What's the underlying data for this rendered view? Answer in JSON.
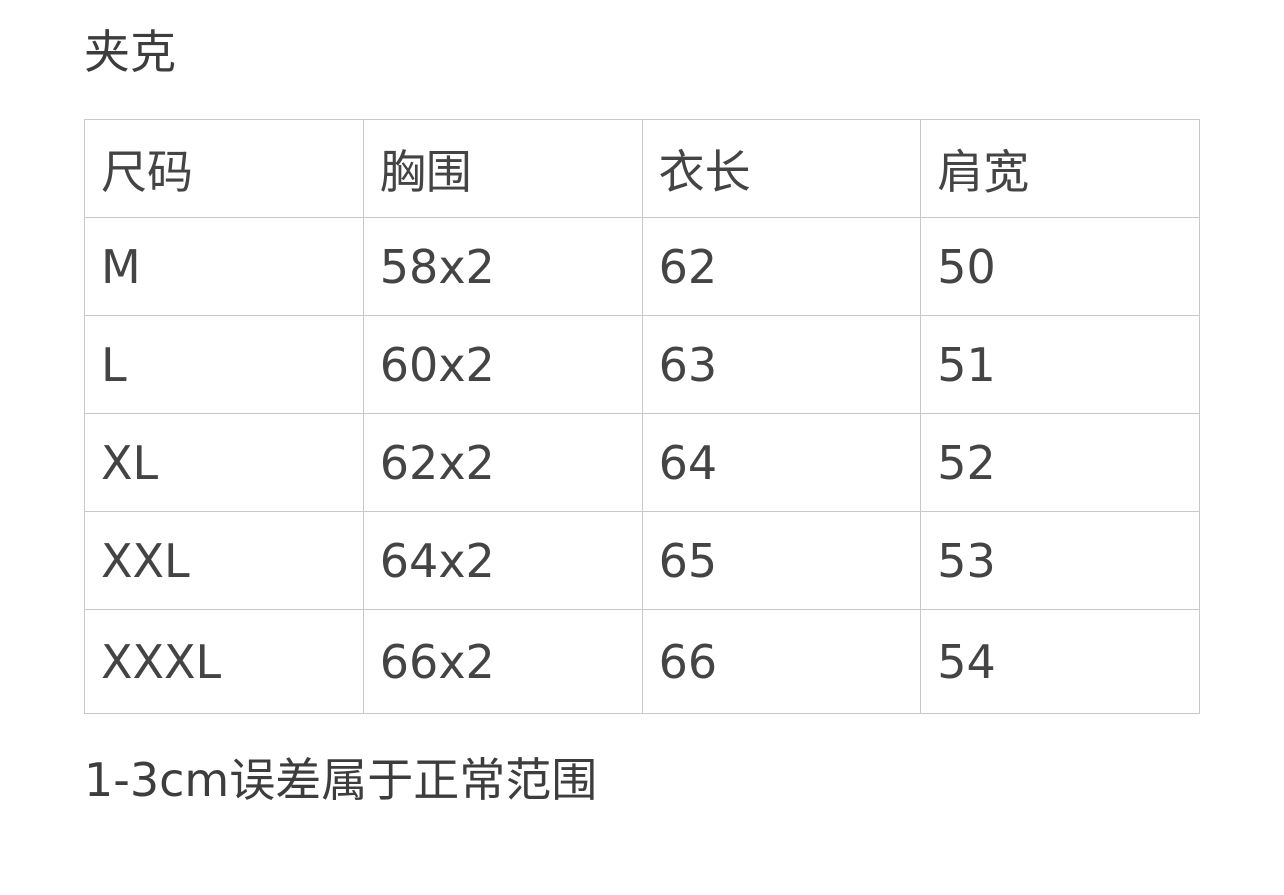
{
  "title": "夹克",
  "table": {
    "headers": [
      "尺码",
      "胸围",
      "衣长",
      "肩宽"
    ],
    "rows": [
      [
        "M",
        "58x2",
        "62",
        "50"
      ],
      [
        "L",
        "60x2",
        "63",
        "51"
      ],
      [
        "XL",
        "62x2",
        "64",
        "52"
      ],
      [
        "XXL",
        "64x2",
        "65",
        "53"
      ],
      [
        "XXXL",
        "66x2",
        "66",
        "54"
      ]
    ]
  },
  "note": "1-3cm误差属于正常范围"
}
